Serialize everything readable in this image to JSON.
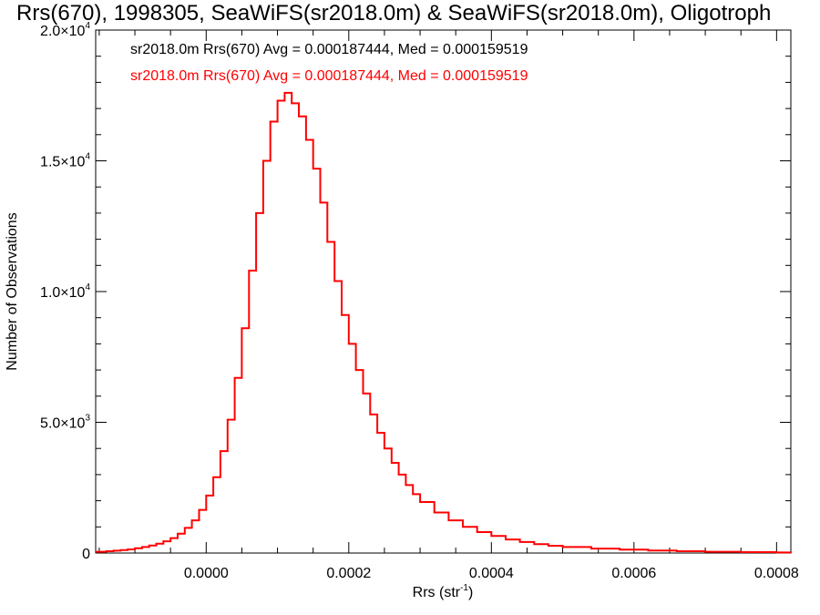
{
  "chart_data": {
    "type": "line",
    "title": "Rrs(670), 1998305, SeaWiFS(sr2018.0m) & SeaWiFS(sr2018.0m), Oligotroph",
    "xlabel": "Rrs (str",
    "xlabel_sup": "-1",
    "xlabel_close": ")",
    "ylabel": "Number of Observations",
    "xlim": [
      -0.000155,
      0.00082
    ],
    "ylim": [
      0,
      20000
    ],
    "xticks": [
      {
        "value": 0.0,
        "label": "0.0000"
      },
      {
        "value": 0.0002,
        "label": "0.0002"
      },
      {
        "value": 0.0004,
        "label": "0.0004"
      },
      {
        "value": 0.0006,
        "label": "0.0006"
      },
      {
        "value": 0.0008,
        "label": "0.0008"
      }
    ],
    "yticks": [
      {
        "value": 0,
        "mant": "0",
        "exp": ""
      },
      {
        "value": 5000,
        "mant": "5.0×10",
        "exp": "3"
      },
      {
        "value": 10000,
        "mant": "1.0×10",
        "exp": "4"
      },
      {
        "value": 15000,
        "mant": "1.5×10",
        "exp": "4"
      },
      {
        "value": 20000,
        "mant": "2.0×10",
        "exp": "4"
      }
    ],
    "annotations": [
      {
        "text": "sr2018.0m Rrs(670) Avg = 0.000187444, Med = 0.000159519",
        "color": "#000000"
      },
      {
        "text": "sr2018.0m Rrs(670) Avg = 0.000187444, Med = 0.000159519",
        "color": "#ff0000"
      }
    ],
    "series": [
      {
        "color": "#ff0000",
        "step": true,
        "x": [
          -0.00015,
          -0.00014,
          -0.00013,
          -0.00012,
          -0.00011,
          -0.0001,
          -9e-05,
          -8e-05,
          -7e-05,
          -6e-05,
          -5e-05,
          -4e-05,
          -3e-05,
          -2e-05,
          -1e-05,
          0.0,
          1e-05,
          2e-05,
          3e-05,
          4e-05,
          5e-05,
          6e-05,
          7e-05,
          8e-05,
          9e-05,
          0.0001,
          0.00011,
          0.00012,
          0.00013,
          0.00014,
          0.00015,
          0.00016,
          0.00017,
          0.00018,
          0.00019,
          0.0002,
          0.00021,
          0.00022,
          0.00023,
          0.00024,
          0.00025,
          0.00026,
          0.00027,
          0.00028,
          0.00029,
          0.0003,
          0.00032,
          0.00034,
          0.00036,
          0.00038,
          0.0004,
          0.00042,
          0.00044,
          0.00046,
          0.00048,
          0.0005,
          0.00054,
          0.00058,
          0.00062,
          0.00066,
          0.0007,
          0.00075,
          0.0008,
          0.00082
        ],
        "values": [
          50,
          70,
          90,
          110,
          140,
          180,
          230,
          290,
          360,
          450,
          570,
          740,
          960,
          1250,
          1650,
          2200,
          2900,
          3900,
          5100,
          6700,
          8600,
          10800,
          13000,
          15000,
          16500,
          17300,
          17600,
          17200,
          16700,
          15800,
          14700,
          13400,
          11900,
          10400,
          9100,
          8000,
          7000,
          6100,
          5300,
          4600,
          4000,
          3450,
          3000,
          2600,
          2250,
          1950,
          1550,
          1250,
          1000,
          800,
          650,
          520,
          420,
          340,
          280,
          230,
          170,
          130,
          95,
          70,
          50,
          35,
          20,
          15
        ]
      }
    ]
  }
}
